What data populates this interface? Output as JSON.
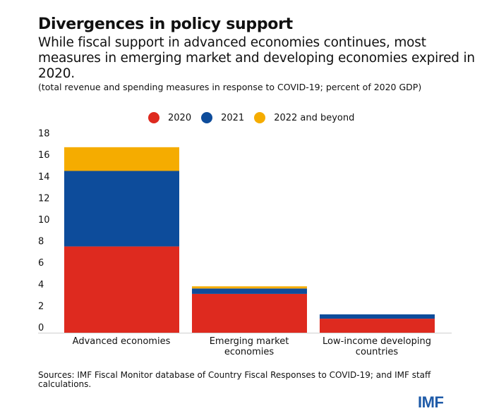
{
  "title": "Divergences in policy support",
  "subtitle": "While fiscal support in advanced economies continues, most measures in emerging market and developing economies expired in 2020.",
  "note": "(total revenue and spending measures in response to COVID-19; percent of 2020 GDP)",
  "source": "Sources: IMF Fiscal Monitor database of Country Fiscal Responses to COVID-19; and IMF staff calculations.",
  "logo": "IMF",
  "colors": {
    "2020": "#de2a1f",
    "2021": "#0d4c9b",
    "2022": "#f5ac00"
  },
  "chart_data": {
    "type": "bar",
    "stacked": true,
    "categories": [
      "Advanced economies",
      "Emerging market economies",
      "Low-income developing countries"
    ],
    "series": [
      {
        "name": "2020",
        "values": [
          8.0,
          3.6,
          1.3
        ]
      },
      {
        "name": "2021",
        "values": [
          7.0,
          0.5,
          0.4
        ]
      },
      {
        "name": "2022 and beyond",
        "values": [
          2.2,
          0.2,
          0.0
        ]
      }
    ],
    "yticks": [
      0,
      2,
      4,
      6,
      8,
      10,
      12,
      14,
      16,
      18
    ],
    "ylim": [
      0,
      18
    ],
    "grid": false,
    "legend_position": "top"
  }
}
